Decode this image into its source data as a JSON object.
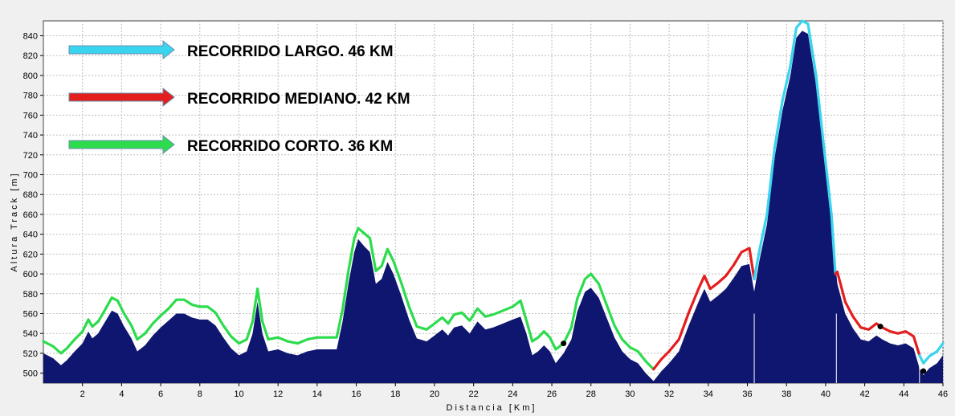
{
  "chart_data": {
    "type": "area",
    "xlabel": "Distancia [Km]",
    "ylabel": "Altura Track [m]",
    "xlim": [
      0,
      46
    ],
    "ylim": [
      490,
      855
    ],
    "x_ticks": [
      2,
      4,
      6,
      8,
      10,
      12,
      14,
      16,
      18,
      20,
      22,
      24,
      26,
      28,
      30,
      32,
      34,
      36,
      38,
      40,
      42,
      44,
      46
    ],
    "y_ticks": [
      500,
      520,
      540,
      560,
      580,
      600,
      620,
      640,
      660,
      680,
      700,
      720,
      740,
      760,
      780,
      800,
      820,
      840
    ],
    "grid": true,
    "fill_color": "#0f1670",
    "legend": [
      {
        "label": "RECORRIDO LARGO. 46 KM",
        "color": "#39d4ee"
      },
      {
        "label": "RECORRIDO MEDIANO. 42 KM",
        "color": "#e41d1d"
      },
      {
        "label": "RECORRIDO CORTO. 36 KM",
        "color": "#2cdc4c"
      }
    ],
    "profile": [
      [
        0,
        520
      ],
      [
        0.5,
        515
      ],
      [
        0.9,
        508
      ],
      [
        1.2,
        513
      ],
      [
        1.6,
        522
      ],
      [
        2.0,
        530
      ],
      [
        2.3,
        542
      ],
      [
        2.5,
        535
      ],
      [
        2.8,
        540
      ],
      [
        3.1,
        550
      ],
      [
        3.5,
        563
      ],
      [
        3.8,
        560
      ],
      [
        4.1,
        548
      ],
      [
        4.5,
        535
      ],
      [
        4.8,
        522
      ],
      [
        5.2,
        528
      ],
      [
        5.6,
        538
      ],
      [
        6.0,
        546
      ],
      [
        6.4,
        553
      ],
      [
        6.8,
        560
      ],
      [
        7.2,
        560
      ],
      [
        7.6,
        556
      ],
      [
        8.0,
        554
      ],
      [
        8.4,
        554
      ],
      [
        8.8,
        548
      ],
      [
        9.2,
        536
      ],
      [
        9.6,
        525
      ],
      [
        10.0,
        518
      ],
      [
        10.4,
        522
      ],
      [
        10.7,
        540
      ],
      [
        10.95,
        572
      ],
      [
        11.2,
        540
      ],
      [
        11.5,
        522
      ],
      [
        12.0,
        524
      ],
      [
        12.5,
        520
      ],
      [
        13.0,
        518
      ],
      [
        13.5,
        522
      ],
      [
        14.0,
        524
      ],
      [
        14.5,
        524
      ],
      [
        15.0,
        524
      ],
      [
        15.3,
        552
      ],
      [
        15.6,
        590
      ],
      [
        15.9,
        622
      ],
      [
        16.1,
        635
      ],
      [
        16.4,
        628
      ],
      [
        16.7,
        622
      ],
      [
        17.0,
        590
      ],
      [
        17.3,
        595
      ],
      [
        17.6,
        612
      ],
      [
        17.9,
        600
      ],
      [
        18.3,
        578
      ],
      [
        18.7,
        554
      ],
      [
        19.1,
        535
      ],
      [
        19.6,
        532
      ],
      [
        20.0,
        538
      ],
      [
        20.4,
        544
      ],
      [
        20.7,
        538
      ],
      [
        21.0,
        546
      ],
      [
        21.4,
        548
      ],
      [
        21.8,
        540
      ],
      [
        22.2,
        552
      ],
      [
        22.6,
        544
      ],
      [
        23.0,
        546
      ],
      [
        23.5,
        550
      ],
      [
        24.0,
        554
      ],
      [
        24.4,
        557
      ],
      [
        24.7,
        540
      ],
      [
        25.0,
        518
      ],
      [
        25.3,
        522
      ],
      [
        25.6,
        528
      ],
      [
        25.9,
        522
      ],
      [
        26.2,
        510
      ],
      [
        26.6,
        520
      ],
      [
        27.0,
        534
      ],
      [
        27.3,
        562
      ],
      [
        27.7,
        582
      ],
      [
        28.0,
        586
      ],
      [
        28.4,
        576
      ],
      [
        28.8,
        556
      ],
      [
        29.2,
        536
      ],
      [
        29.6,
        522
      ],
      [
        30.0,
        514
      ],
      [
        30.4,
        510
      ],
      [
        30.8,
        500
      ],
      [
        31.2,
        492
      ],
      [
        31.6,
        502
      ],
      [
        32.0,
        510
      ],
      [
        32.5,
        522
      ],
      [
        33.0,
        548
      ],
      [
        33.5,
        572
      ],
      [
        33.8,
        585
      ],
      [
        34.1,
        572
      ],
      [
        34.5,
        578
      ],
      [
        34.9,
        585
      ],
      [
        35.3,
        596
      ],
      [
        35.7,
        608
      ],
      [
        36.1,
        610
      ],
      [
        36.35,
        582
      ],
      [
        36.6,
        612
      ],
      [
        37.0,
        650
      ],
      [
        37.4,
        718
      ],
      [
        37.8,
        765
      ],
      [
        38.2,
        800
      ],
      [
        38.5,
        838
      ],
      [
        38.8,
        845
      ],
      [
        39.1,
        842
      ],
      [
        39.5,
        792
      ],
      [
        39.9,
        720
      ],
      [
        40.3,
        650
      ],
      [
        40.6,
        590
      ],
      [
        41.0,
        560
      ],
      [
        41.4,
        545
      ],
      [
        41.8,
        534
      ],
      [
        42.2,
        532
      ],
      [
        42.6,
        538
      ],
      [
        42.9,
        534
      ],
      [
        43.3,
        530
      ],
      [
        43.7,
        528
      ],
      [
        44.1,
        530
      ],
      [
        44.5,
        525
      ],
      [
        44.8,
        505
      ],
      [
        45.0,
        498
      ],
      [
        45.3,
        505
      ],
      [
        45.7,
        510
      ],
      [
        46,
        518
      ]
    ],
    "series": [
      {
        "name": "RECORRIDO CORTO. 36 KM",
        "color": "#2cdc4c",
        "points": [
          [
            0,
            532
          ],
          [
            0.5,
            527
          ],
          [
            0.9,
            520
          ],
          [
            1.2,
            525
          ],
          [
            1.6,
            534
          ],
          [
            2.0,
            542
          ],
          [
            2.3,
            554
          ],
          [
            2.5,
            547
          ],
          [
            2.8,
            552
          ],
          [
            3.1,
            562
          ],
          [
            3.5,
            576
          ],
          [
            3.8,
            573
          ],
          [
            4.1,
            561
          ],
          [
            4.5,
            548
          ],
          [
            4.8,
            534
          ],
          [
            5.2,
            540
          ],
          [
            5.6,
            550
          ],
          [
            6.0,
            558
          ],
          [
            6.4,
            565
          ],
          [
            6.8,
            574
          ],
          [
            7.2,
            574
          ],
          [
            7.6,
            569
          ],
          [
            8.0,
            567
          ],
          [
            8.4,
            567
          ],
          [
            8.8,
            561
          ],
          [
            9.2,
            548
          ],
          [
            9.6,
            537
          ],
          [
            10.0,
            530
          ],
          [
            10.4,
            534
          ],
          [
            10.7,
            552
          ],
          [
            10.95,
            585
          ],
          [
            11.2,
            552
          ],
          [
            11.5,
            534
          ],
          [
            12.0,
            536
          ],
          [
            12.5,
            532
          ],
          [
            13.0,
            530
          ],
          [
            13.5,
            534
          ],
          [
            14.0,
            536
          ],
          [
            14.5,
            536
          ],
          [
            15.0,
            536
          ],
          [
            15.3,
            564
          ],
          [
            15.6,
            603
          ],
          [
            15.9,
            636
          ],
          [
            16.1,
            646
          ],
          [
            16.4,
            641
          ],
          [
            16.7,
            636
          ],
          [
            17.0,
            603
          ],
          [
            17.3,
            608
          ],
          [
            17.6,
            625
          ],
          [
            17.9,
            613
          ],
          [
            18.3,
            591
          ],
          [
            18.7,
            567
          ],
          [
            19.1,
            547
          ],
          [
            19.6,
            544
          ],
          [
            20.0,
            550
          ],
          [
            20.4,
            556
          ],
          [
            20.7,
            550
          ],
          [
            21.0,
            559
          ],
          [
            21.4,
            561
          ],
          [
            21.8,
            553
          ],
          [
            22.2,
            565
          ],
          [
            22.6,
            557
          ],
          [
            23.0,
            559
          ],
          [
            23.5,
            563
          ],
          [
            24.0,
            567
          ],
          [
            24.4,
            573
          ],
          [
            24.7,
            553
          ],
          [
            25.0,
            532
          ],
          [
            25.3,
            536
          ],
          [
            25.6,
            542
          ],
          [
            25.9,
            536
          ],
          [
            26.2,
            524
          ],
          [
            26.6,
            530
          ]
        ]
      },
      {
        "name": "RECORRIDO CORTO. 36 KM",
        "color": "#2cdc4c",
        "points": [
          [
            26.6,
            530
          ],
          [
            27.0,
            546
          ],
          [
            27.3,
            575
          ],
          [
            27.7,
            595
          ],
          [
            28.0,
            600
          ],
          [
            28.4,
            590
          ],
          [
            28.8,
            569
          ],
          [
            29.2,
            548
          ],
          [
            29.6,
            534
          ],
          [
            30.0,
            526
          ],
          [
            30.4,
            522
          ],
          [
            30.8,
            512
          ],
          [
            31.2,
            504
          ]
        ]
      },
      {
        "name": "RECORRIDO MEDIANO. 42 KM",
        "color": "#e41d1d",
        "points": [
          [
            31.2,
            504
          ],
          [
            31.6,
            514
          ],
          [
            32.0,
            522
          ],
          [
            32.5,
            534
          ],
          [
            33.0,
            561
          ],
          [
            33.5,
            585
          ],
          [
            33.8,
            598
          ],
          [
            34.1,
            585
          ],
          [
            34.5,
            591
          ],
          [
            34.9,
            598
          ],
          [
            35.3,
            609
          ],
          [
            35.7,
            622
          ],
          [
            36.1,
            626
          ],
          [
            36.35,
            595
          ]
        ]
      },
      {
        "name": "RECORRIDO LARGO. 46 KM",
        "color": "#39d4ee",
        "points": [
          [
            36.35,
            595
          ],
          [
            36.6,
            622
          ],
          [
            37.0,
            660
          ],
          [
            37.4,
            728
          ],
          [
            37.8,
            775
          ],
          [
            38.2,
            810
          ],
          [
            38.5,
            848
          ],
          [
            38.8,
            855
          ],
          [
            39.1,
            852
          ],
          [
            39.5,
            802
          ],
          [
            39.9,
            730
          ],
          [
            40.3,
            660
          ],
          [
            40.5,
            600
          ]
        ]
      },
      {
        "name": "RECORRIDO MEDIANO. 42 KM",
        "color": "#e41d1d",
        "points": [
          [
            40.5,
            600
          ],
          [
            40.6,
            602
          ],
          [
            41.0,
            572
          ],
          [
            41.4,
            557
          ],
          [
            41.8,
            546
          ],
          [
            42.2,
            544
          ],
          [
            42.6,
            550
          ],
          [
            42.9,
            546
          ],
          [
            43.3,
            542
          ],
          [
            43.7,
            540
          ],
          [
            44.1,
            542
          ],
          [
            44.5,
            537
          ],
          [
            44.8,
            518
          ]
        ]
      },
      {
        "name": "RECORRIDO LARGO. 46 KM",
        "color": "#39d4ee",
        "points": [
          [
            44.8,
            518
          ],
          [
            45.0,
            510
          ],
          [
            45.3,
            517
          ],
          [
            45.7,
            522
          ],
          [
            46,
            530
          ]
        ]
      }
    ],
    "markers": [
      [
        26.6,
        530
      ],
      [
        42.8,
        547
      ],
      [
        45.0,
        502
      ]
    ],
    "vlines": [
      36.35,
      40.55,
      44.8
    ]
  }
}
